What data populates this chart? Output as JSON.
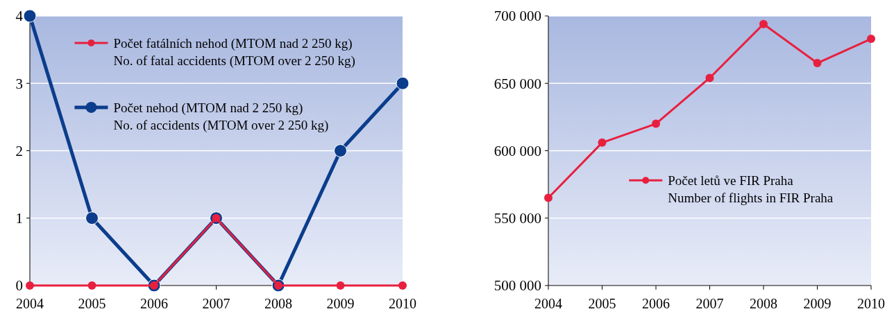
{
  "chart_data": [
    {
      "type": "line",
      "categories": [
        "2004",
        "2005",
        "2006",
        "2007",
        "2008",
        "2009",
        "2010"
      ],
      "series": [
        {
          "name": "Počet fatálních nehod (MTOM nad 2 250 kg)\nNo. of fatal accidents (MTOM over 2 250 kg)",
          "color": "#e8203f",
          "values": [
            0,
            0,
            0,
            1,
            0,
            0,
            0
          ]
        },
        {
          "name": "Počet nehod (MTOM nad 2 250 kg)\nNo. of accidents (MTOM over 2 250 kg)",
          "color": "#0b3d8c",
          "values": [
            4,
            1,
            0,
            1,
            0,
            2,
            3
          ]
        }
      ],
      "ylim": [
        0,
        4
      ],
      "yticks": [
        0,
        1,
        2,
        3,
        4
      ],
      "grid": "y",
      "legend": "top",
      "marker": "circle",
      "line_style": "solid"
    },
    {
      "type": "line",
      "categories": [
        "2004",
        "2005",
        "2006",
        "2007",
        "2008",
        "2009",
        "2010"
      ],
      "series": [
        {
          "name": "Počet letů ve FIR Praha\nNumber of flights in FIR Praha",
          "color": "#e8203f",
          "values": [
            565000,
            606000,
            620000,
            654000,
            694000,
            665000,
            683000
          ]
        }
      ],
      "ylim": [
        500000,
        700000
      ],
      "yticks": [
        {
          "value": 500000,
          "label": "500 000"
        },
        {
          "value": 550000,
          "label": "550 000"
        },
        {
          "value": 600000,
          "label": "600 000"
        },
        {
          "value": 650000,
          "label": "650 000"
        },
        {
          "value": 700000,
          "label": "700 000"
        }
      ],
      "grid": "y",
      "legend": "right",
      "marker": "circle",
      "line_style": "solid"
    }
  ]
}
